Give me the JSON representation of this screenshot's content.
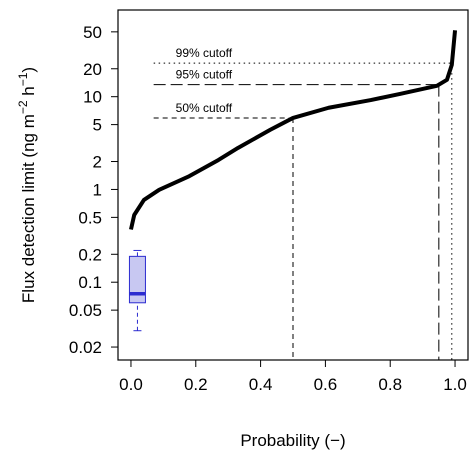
{
  "chart_data": {
    "type": "line",
    "ylog": true,
    "xlabel": "Probability (−)",
    "ylabel": [
      "Flux detection limit (ng m",
      "−2",
      " h",
      "−1",
      ")"
    ],
    "xlim": [
      -0.04,
      1.04
    ],
    "ylim": [
      0.0145,
      86
    ],
    "xticks": [
      {
        "value": 0,
        "label": "0.0"
      },
      0.2,
      0.4,
      0.6,
      0.8,
      {
        "value": 1,
        "label": "1.0"
      }
    ],
    "yticks": [
      0.02,
      0.05,
      0.1,
      0.2,
      0.5,
      1,
      2,
      5,
      10,
      20,
      50
    ],
    "series": [
      {
        "color": "#000000",
        "x": [
          0,
          0.01,
          0.04,
          0.087,
          0.18,
          0.27,
          0.33,
          0.43,
          0.5,
          0.61,
          0.74,
          0.83,
          0.944,
          0.975,
          0.99,
          1.0
        ],
        "values": [
          0.37,
          0.53,
          0.77,
          0.99,
          1.39,
          2.08,
          2.8,
          4.4,
          5.9,
          7.6,
          9.2,
          10.7,
          13.1,
          15.2,
          22,
          52
        ]
      }
    ],
    "cutoffs": [
      {
        "label": "99% cutoff",
        "x": 0.99,
        "y": 23,
        "style": "dotted"
      },
      {
        "label": "95% cutoff",
        "x": 0.95,
        "y": 13.5,
        "style": "longdash"
      },
      {
        "label": "50% cutoff",
        "x": 0.5,
        "y": 5.9,
        "style": "dashed"
      }
    ],
    "box": {
      "x": 0.02,
      "whisker_low": 0.03,
      "q1": 0.06,
      "median": 0.075,
      "q3": 0.19,
      "whisker_high": 0.22,
      "color": "#2b2bd0",
      "fill": "#c8c8f2"
    }
  }
}
